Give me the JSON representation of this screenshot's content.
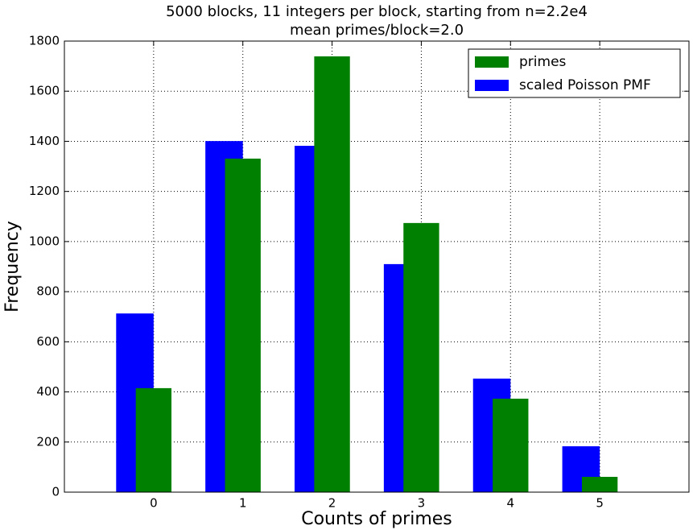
{
  "chart_data": {
    "type": "bar",
    "title": "5000 blocks, 11 integers per block, starting from n=2.2e4",
    "subtitle": "mean primes/block=2.0",
    "x_label": "Counts of primes",
    "y_label": "Frequency",
    "x": [
      0,
      1,
      2,
      3,
      4,
      5
    ],
    "series": [
      {
        "name": "primes",
        "color": "#008000",
        "values": [
          415,
          1331,
          1739,
          1074,
          373,
          61
        ]
      },
      {
        "name": "scaled Poisson PMF",
        "color": "#0000ff",
        "values": [
          713,
          1401,
          1382,
          910,
          453,
          183
        ]
      }
    ],
    "xlim": [
      -1,
      6
    ],
    "xticks": [
      0,
      1,
      2,
      3,
      4,
      5
    ],
    "ylim": [
      0,
      1800
    ],
    "yticks": [
      0,
      200,
      400,
      600,
      800,
      1000,
      1200,
      1400,
      1600,
      1800
    ],
    "grid": true,
    "legend": "upper right"
  }
}
